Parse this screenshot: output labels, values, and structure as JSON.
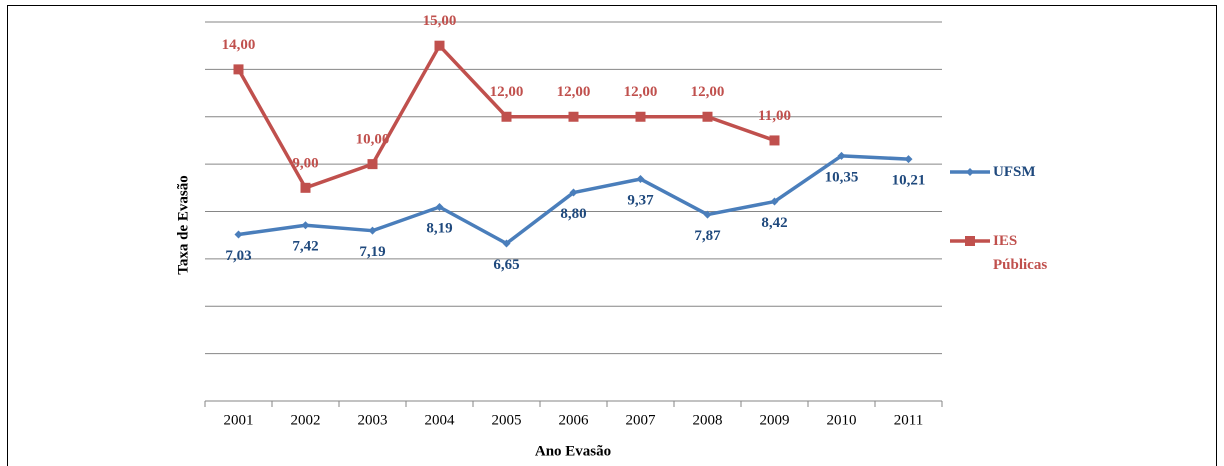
{
  "chart_data": {
    "type": "line",
    "x_label": "Ano Evasão",
    "y_label": "Taxa de Evasão",
    "categories": [
      "2001",
      "2002",
      "2003",
      "2004",
      "2005",
      "2006",
      "2007",
      "2008",
      "2009",
      "2010",
      "2011"
    ],
    "series": [
      {
        "name": "UFSM",
        "color": "#4a7ebb",
        "marker": "diamond",
        "values": [
          7.03,
          7.42,
          7.19,
          8.19,
          6.65,
          8.8,
          9.37,
          7.87,
          8.42,
          10.35,
          10.21
        ],
        "value_labels": [
          "7,03",
          "7,42",
          "7,19",
          "8,19",
          "6,65",
          "8,80",
          "9,37",
          "7,87",
          "8,42",
          "10,35",
          "10,21"
        ]
      },
      {
        "name": "IES Públicas",
        "color": "#c0504d",
        "marker": "square",
        "values": [
          14,
          9,
          10,
          15,
          12,
          12,
          12,
          12,
          11,
          null,
          null
        ],
        "value_labels": [
          "14,00",
          "9,00",
          "10,00",
          "15,00",
          "12,00",
          "12,00",
          "12,00",
          "12,00",
          "11,00",
          null,
          null
        ]
      }
    ],
    "ylim": [
      0,
      16
    ],
    "yticks": [
      0,
      2,
      4,
      6,
      8,
      10,
      12,
      14,
      16
    ],
    "grid": true,
    "legend": "right"
  }
}
